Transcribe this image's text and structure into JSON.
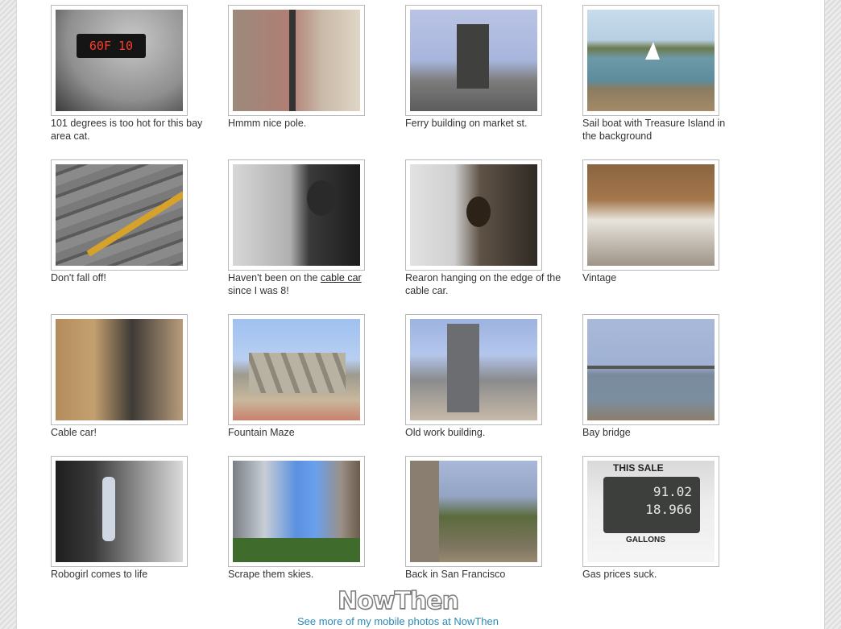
{
  "gallery": {
    "items": [
      {
        "caption": "101 degrees is too hot for this bay area cat.",
        "photo": "dashboard-thermometer"
      },
      {
        "caption": "Hmmm nice pole.",
        "photo": "sidewalk-pole"
      },
      {
        "caption": "Ferry building on market st.",
        "photo": "ferry-building"
      },
      {
        "caption": "Sail boat with Treasure Island in the background",
        "photo": "sail-boat-bay"
      },
      {
        "caption": "Don't fall off!",
        "photo": "cable-car-tracks"
      },
      {
        "caption_before": "Haven't been on the ",
        "caption_link": "cable car",
        "caption_after": " since I was 8!",
        "photo": "cable-car-riders"
      },
      {
        "caption": "Rearon hanging on the edge of the cable car.",
        "photo": "cable-car-edge"
      },
      {
        "caption": "Vintage",
        "photo": "cable-car-interior"
      },
      {
        "caption": "Cable car!",
        "photo": "cable-car-selfie"
      },
      {
        "caption": "Fountain Maze",
        "photo": "fountain-sculpture"
      },
      {
        "caption": "Old work building.",
        "photo": "office-towers"
      },
      {
        "caption": "Bay bridge",
        "photo": "bay-bridge"
      },
      {
        "caption": "Robogirl comes to life",
        "photo": "street-performer"
      },
      {
        "caption": "Scrape them skies.",
        "photo": "skyscrapers"
      },
      {
        "caption": "Back in San Francisco",
        "photo": "sf-street"
      },
      {
        "caption": "Gas prices suck.",
        "photo": "gas-pump"
      }
    ]
  },
  "photo_text": {
    "gauge_display": "60F  10",
    "gas_header": "THIS SALE",
    "gas_amount": "91.02",
    "gas_volume": "18.966",
    "gas_unit": "GALLONS"
  },
  "footer": {
    "logo": "NowThen",
    "link": "See more of my mobile photos at NowThen"
  }
}
